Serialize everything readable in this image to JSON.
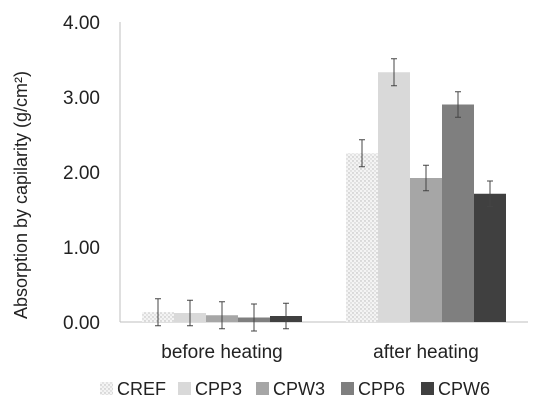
{
  "chart_data": {
    "type": "bar",
    "title": "",
    "xlabel": "",
    "ylabel": "Absorption by capilarity  (g/cm²)",
    "ylim": [
      0,
      4
    ],
    "yticks": [
      "0.00",
      "1.00",
      "2.00",
      "3.00",
      "4.00"
    ],
    "grid": false,
    "legend_position": "bottom",
    "categories": [
      "before heating",
      "after heating"
    ],
    "series": [
      {
        "name": "CREF",
        "values": [
          0.13,
          2.25
        ],
        "errors": [
          0.18,
          0.18
        ],
        "color": "#eeeeee",
        "pattern": "dotted"
      },
      {
        "name": "CPP3",
        "values": [
          0.12,
          3.33
        ],
        "errors": [
          0.17,
          0.18
        ],
        "color": "#d9d9d9",
        "pattern": "solid"
      },
      {
        "name": "CPW3",
        "values": [
          0.09,
          1.92
        ],
        "errors": [
          0.18,
          0.17
        ],
        "color": "#a6a6a6",
        "pattern": "solid"
      },
      {
        "name": "CPP6",
        "values": [
          0.06,
          2.9
        ],
        "errors": [
          0.18,
          0.17
        ],
        "color": "#7f7f7f",
        "pattern": "solid"
      },
      {
        "name": "CPW6",
        "values": [
          0.08,
          1.71
        ],
        "errors": [
          0.17,
          0.17
        ],
        "color": "#404040",
        "pattern": "solid"
      }
    ]
  }
}
